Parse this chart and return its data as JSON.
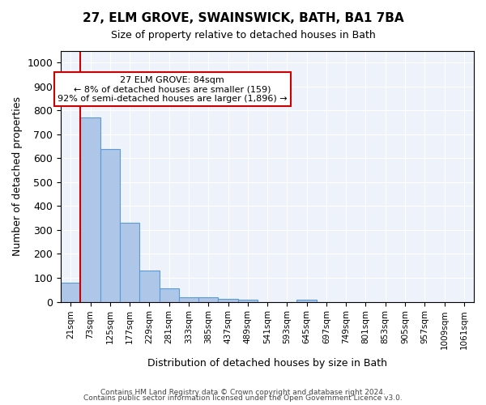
{
  "title1": "27, ELM GROVE, SWAINSWICK, BATH, BA1 7BA",
  "title2": "Size of property relative to detached houses in Bath",
  "xlabel": "Distribution of detached houses by size in Bath",
  "ylabel": "Number of detached properties",
  "annotation_line1": "27 ELM GROVE: 84sqm",
  "annotation_line2": "← 8% of detached houses are smaller (159)",
  "annotation_line3": "92% of semi-detached houses are larger (1,896) →",
  "bar_color": "#aec6e8",
  "bar_edge_color": "#5b9bd5",
  "vline_color": "#cc0000",
  "vline_x_index": 1,
  "annotation_box_color": "#cc0000",
  "categories": [
    "21sqm",
    "73sqm",
    "125sqm",
    "177sqm",
    "229sqm",
    "281sqm",
    "333sqm",
    "385sqm",
    "437sqm",
    "489sqm",
    "541sqm",
    "593sqm",
    "645sqm",
    "697sqm",
    "749sqm",
    "801sqm",
    "853sqm",
    "905sqm",
    "957sqm",
    "1009sqm",
    "1061sqm"
  ],
  "bar_values": [
    80,
    770,
    640,
    330,
    130,
    55,
    20,
    18,
    12,
    8,
    0,
    0,
    8,
    0,
    0,
    0,
    0,
    0,
    0,
    0,
    0
  ],
  "ylim": [
    0,
    1050
  ],
  "yticks": [
    0,
    100,
    200,
    300,
    400,
    500,
    600,
    700,
    800,
    900,
    1000
  ],
  "footer1": "Contains HM Land Registry data © Crown copyright and database right 2024.",
  "footer2": "Contains public sector information licensed under the Open Government Licence v3.0.",
  "bg_color": "#eef3fb",
  "fig_bg_color": "#ffffff",
  "grid_color": "#ffffff"
}
